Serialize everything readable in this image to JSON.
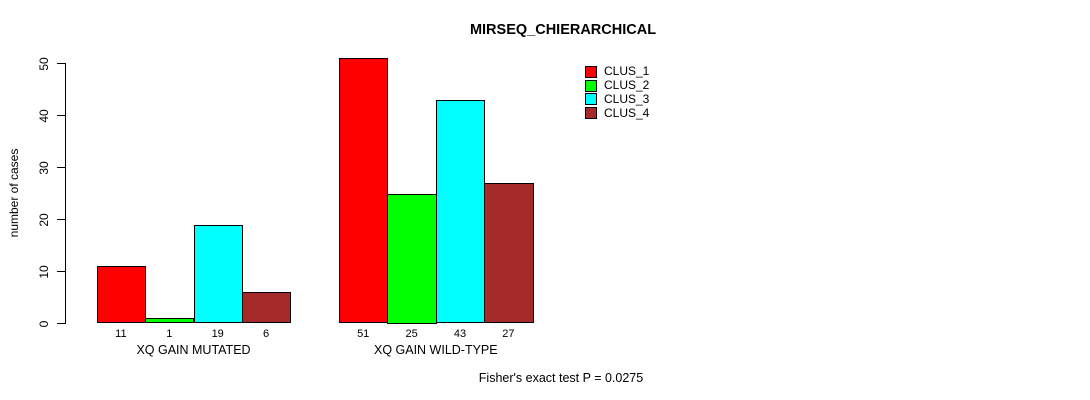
{
  "chart_data": {
    "type": "bar",
    "title": "MIRSEQ_CHIERARCHICAL",
    "ylabel": "number of cases",
    "xlabel": "",
    "footer": "Fisher's exact test P = 0.0275",
    "categories": [
      "XQ GAIN MUTATED",
      "XQ GAIN WILD-TYPE"
    ],
    "series": [
      {
        "name": "CLUS_1",
        "color": "#ff0000",
        "values": [
          11,
          51
        ]
      },
      {
        "name": "CLUS_2",
        "color": "#00ff00",
        "values": [
          1,
          25
        ]
      },
      {
        "name": "CLUS_3",
        "color": "#00ffff",
        "values": [
          19,
          43
        ]
      },
      {
        "name": "CLUS_4",
        "color": "#a52a2a",
        "values": [
          6,
          27
        ]
      }
    ],
    "yticks": [
      0,
      10,
      20,
      30,
      40,
      50
    ],
    "ylim": [
      0,
      50
    ],
    "bar_border_color": "#000000",
    "show_bar_value_labels": true,
    "grid": false,
    "legend_position": "top-right"
  }
}
